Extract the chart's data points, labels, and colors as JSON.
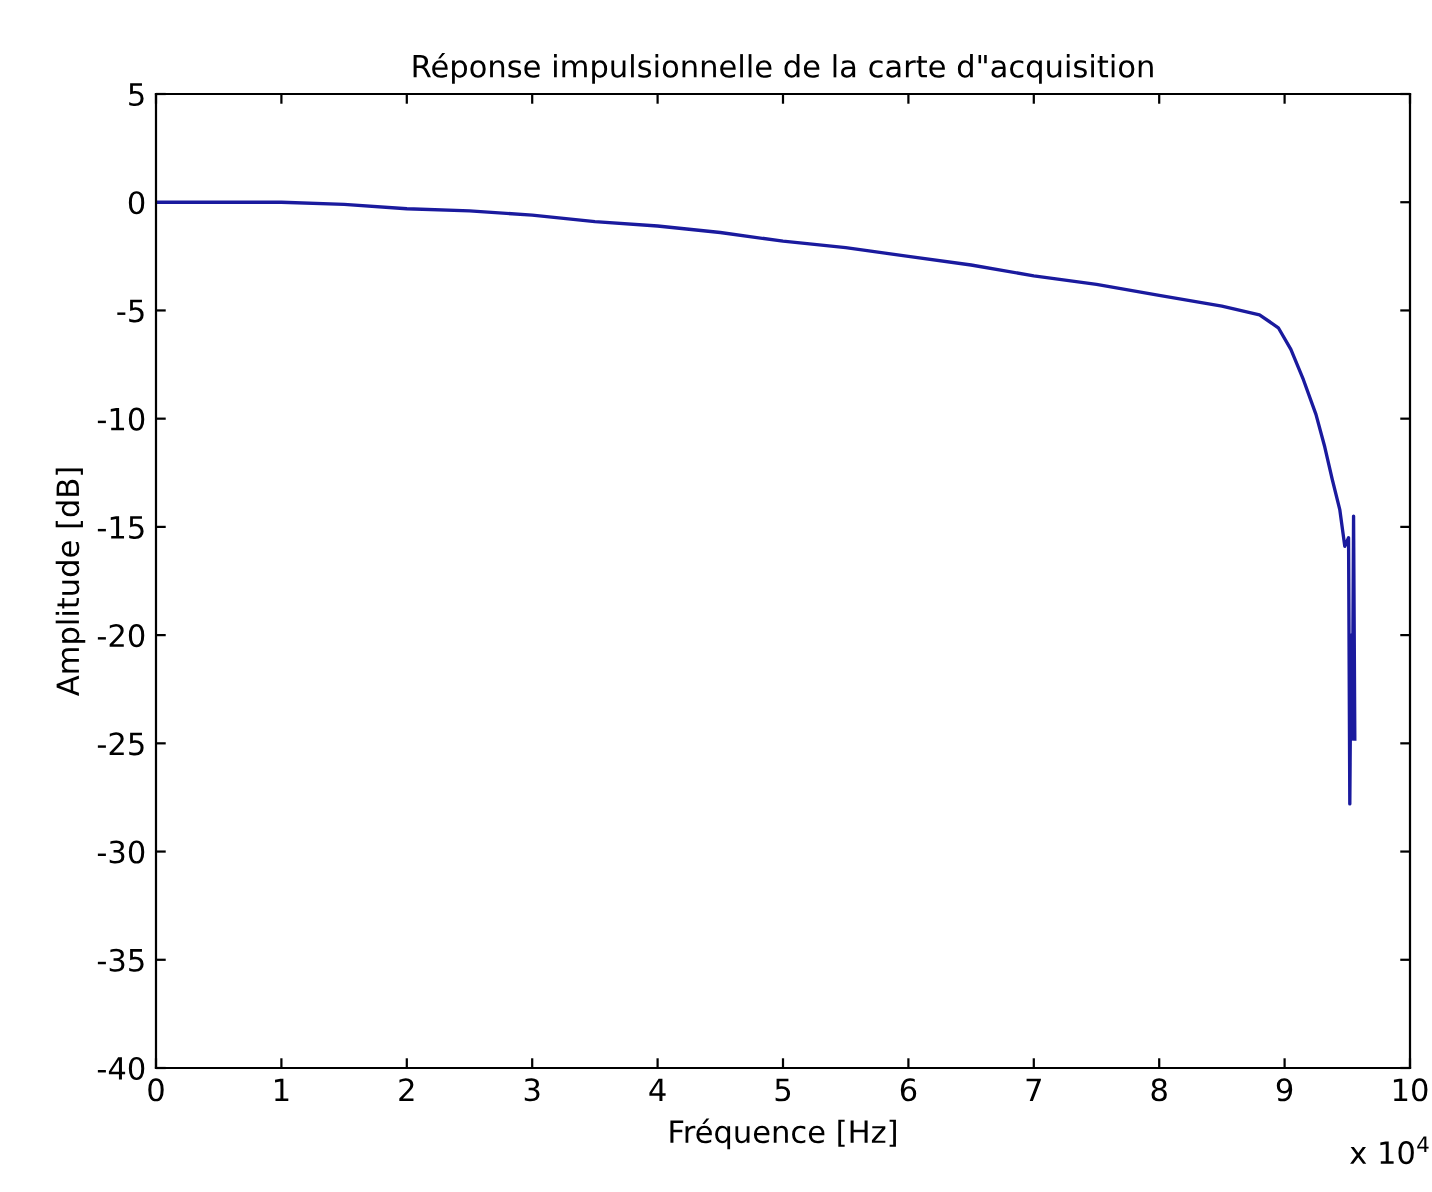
{
  "chart_data": {
    "type": "line",
    "title": "Réponse impulsionnelle de la carte d\"acquisition",
    "xlabel": "Fréquence [Hz]",
    "ylabel": "Amplitude [dB]",
    "annotations": [
      "x 10$^{4}$"
    ],
    "x": [
      0,
      1,
      1.5,
      2,
      2.5,
      3,
      3.5,
      4,
      4.5,
      5,
      5.5,
      6,
      6.5,
      7,
      7.5,
      8,
      8.5,
      8.8,
      8.95,
      9.05,
      9.15,
      9.25,
      9.32,
      9.38,
      9.44,
      9.48,
      9.51,
      9.52,
      9.53,
      9.54,
      9.55,
      9.56
    ],
    "series": [
      {
        "color": "#1a1a9e",
        "values": [
          0,
          0,
          -0.1,
          -0.3,
          -0.4,
          -0.6,
          -0.9,
          -1.1,
          -1.4,
          -1.8,
          -2.1,
          -2.5,
          -2.9,
          -3.4,
          -3.8,
          -4.3,
          -4.8,
          -5.2,
          -5.8,
          -6.8,
          -8.2,
          -9.8,
          -11.3,
          -12.8,
          -14.2,
          -15.9,
          -15.5,
          -27.8,
          -20,
          -24.8,
          -14.5,
          -24.8
        ]
      }
    ],
    "xlim": [
      0,
      10
    ],
    "ylim": [
      -40,
      5
    ],
    "xticks": [
      0,
      1,
      2,
      3,
      4,
      5,
      6,
      7,
      8,
      9,
      10
    ],
    "yticks": [
      -40,
      -35,
      -30,
      -25,
      -20,
      -15,
      -10,
      -5,
      0,
      5
    ],
    "grid": false,
    "legend": false,
    "marker": "none",
    "line_style": "solid"
  }
}
